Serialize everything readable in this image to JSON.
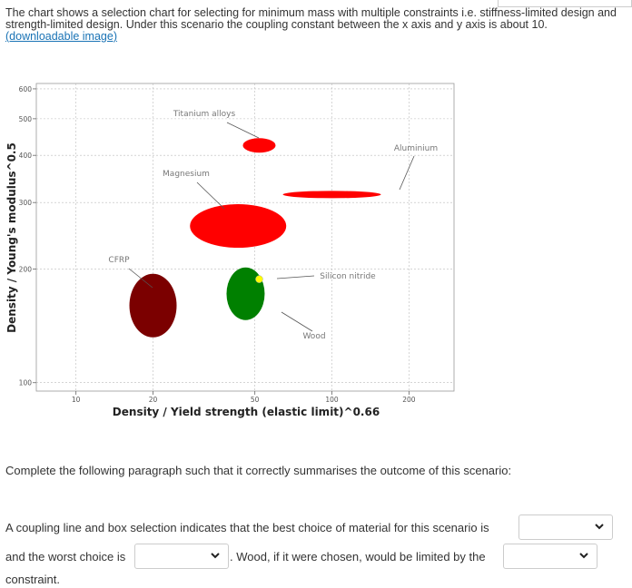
{
  "intro": {
    "text": "The chart shows a selection chart for selecting for minimum mass with multiple constraints i.e. stiffness-limited design and strength-limited design. Under this scenario the coupling constant between the x axis and y axis is about 10.",
    "link": "(downloadable image)"
  },
  "chart_data": {
    "type": "scatter",
    "xlabel": "Density / Yield strength (elastic limit)^0.66",
    "ylabel": "Density / Young's modulus^0.5",
    "x_scale": "log",
    "y_scale": "log",
    "xlim": [
      7,
      300
    ],
    "ylim": [
      95,
      620
    ],
    "x_ticks": [
      "10",
      "20",
      "50",
      "100",
      "200"
    ],
    "y_ticks": [
      "100",
      "200",
      "300",
      "400",
      "500",
      "600"
    ],
    "grid": true,
    "materials": [
      {
        "name": "Titanium alloys",
        "x": 52,
        "y": 425,
        "color": "#ff0000"
      },
      {
        "name": "Aluminium",
        "x": 100,
        "y": 315,
        "color": "#ff0000"
      },
      {
        "name": "Magnesium",
        "x": 43,
        "y": 260,
        "color": "#ff0000"
      },
      {
        "name": "CFRP",
        "x": 20,
        "y": 160,
        "color": "#7b0000"
      },
      {
        "name": "Wood",
        "x": 46,
        "y": 172,
        "color": "#008000"
      },
      {
        "name": "Silicon nitride",
        "x": 52,
        "y": 188,
        "color": "#ffff00"
      }
    ]
  },
  "question": {
    "prompt": "Complete the following paragraph such that it correctly summarises the outcome of this scenario:",
    "s1": "A coupling line and box selection indicates that the best choice of material for this scenario is",
    "s2": "and the worst choice is",
    "s3": ". Wood, if it were chosen, would be limited by the",
    "s4": "constraint."
  },
  "dropdowns": {
    "best": "",
    "worst": "",
    "constraint": ""
  },
  "icons": {
    "dropdown": "chevron-down-icon"
  }
}
